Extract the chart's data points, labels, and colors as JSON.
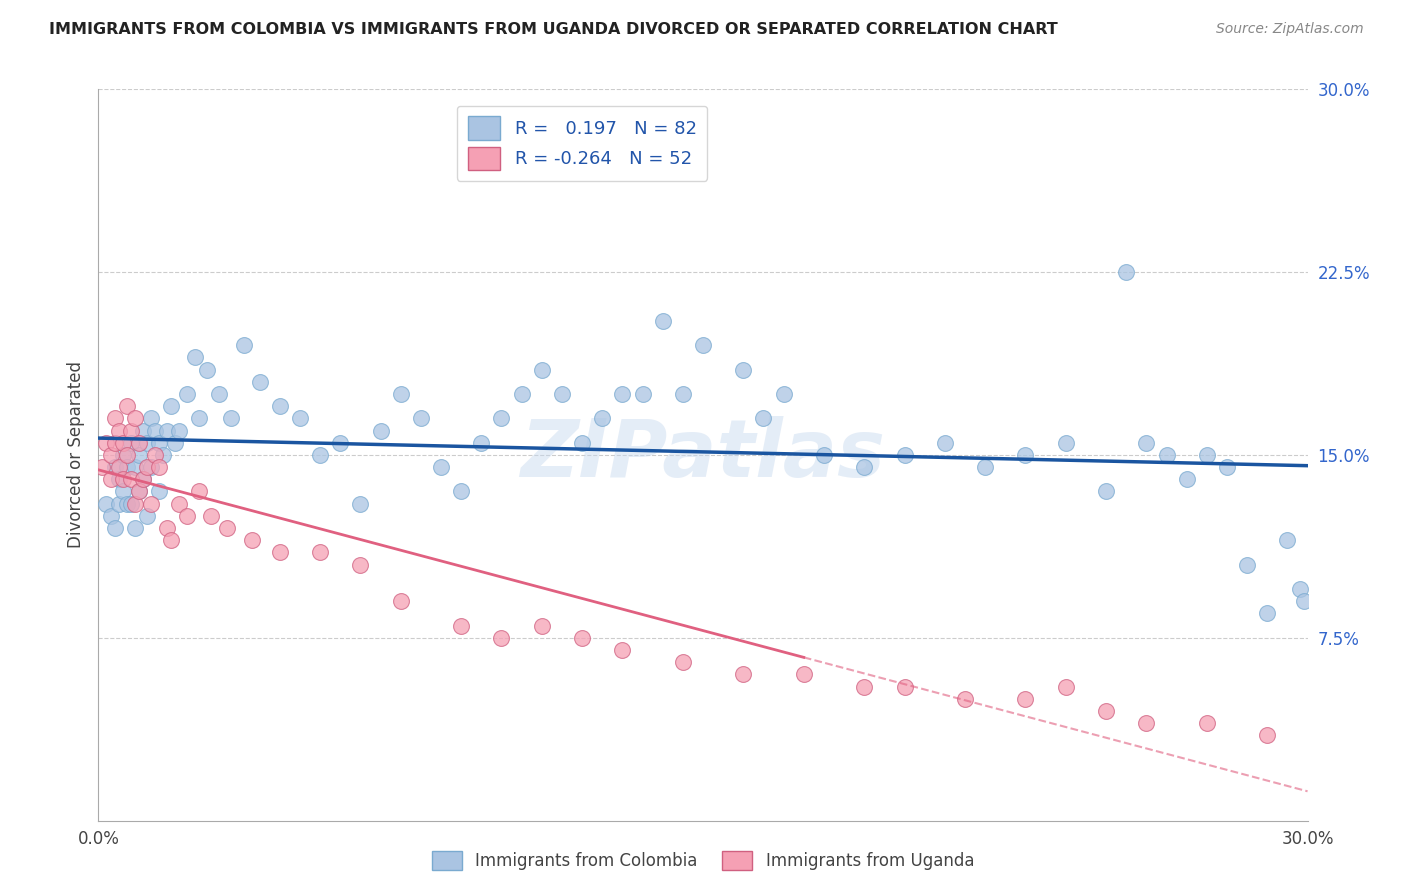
{
  "title": "IMMIGRANTS FROM COLOMBIA VS IMMIGRANTS FROM UGANDA DIVORCED OR SEPARATED CORRELATION CHART",
  "source": "Source: ZipAtlas.com",
  "ylabel": "Divorced or Separated",
  "xlim": [
    0.0,
    0.3
  ],
  "ylim": [
    0.0,
    0.3
  ],
  "colombia_R": 0.197,
  "colombia_N": 82,
  "uganda_R": -0.264,
  "uganda_N": 52,
  "colombia_color": "#aac4e2",
  "uganda_color": "#f5a0b4",
  "colombia_line_color": "#1a55a0",
  "uganda_line_color": "#e06080",
  "background_color": "#ffffff",
  "watermark": "ZIPatlas",
  "colombia_points_x": [
    0.002,
    0.003,
    0.004,
    0.004,
    0.005,
    0.005,
    0.006,
    0.006,
    0.007,
    0.007,
    0.008,
    0.008,
    0.009,
    0.009,
    0.01,
    0.01,
    0.011,
    0.011,
    0.012,
    0.012,
    0.013,
    0.013,
    0.014,
    0.015,
    0.015,
    0.016,
    0.017,
    0.018,
    0.019,
    0.02,
    0.022,
    0.024,
    0.025,
    0.027,
    0.03,
    0.033,
    0.036,
    0.04,
    0.045,
    0.05,
    0.055,
    0.06,
    0.065,
    0.07,
    0.075,
    0.08,
    0.085,
    0.09,
    0.095,
    0.1,
    0.105,
    0.11,
    0.115,
    0.12,
    0.125,
    0.13,
    0.135,
    0.14,
    0.145,
    0.15,
    0.16,
    0.165,
    0.17,
    0.18,
    0.19,
    0.2,
    0.21,
    0.22,
    0.23,
    0.24,
    0.25,
    0.255,
    0.26,
    0.265,
    0.27,
    0.275,
    0.28,
    0.285,
    0.29,
    0.295,
    0.298,
    0.299
  ],
  "colombia_points_y": [
    0.13,
    0.125,
    0.145,
    0.12,
    0.14,
    0.13,
    0.135,
    0.15,
    0.13,
    0.145,
    0.13,
    0.155,
    0.145,
    0.12,
    0.15,
    0.135,
    0.16,
    0.14,
    0.155,
    0.125,
    0.165,
    0.145,
    0.16,
    0.155,
    0.135,
    0.15,
    0.16,
    0.17,
    0.155,
    0.16,
    0.175,
    0.19,
    0.165,
    0.185,
    0.175,
    0.165,
    0.195,
    0.18,
    0.17,
    0.165,
    0.15,
    0.155,
    0.13,
    0.16,
    0.175,
    0.165,
    0.145,
    0.135,
    0.155,
    0.165,
    0.175,
    0.185,
    0.175,
    0.155,
    0.165,
    0.175,
    0.175,
    0.205,
    0.175,
    0.195,
    0.185,
    0.165,
    0.175,
    0.15,
    0.145,
    0.15,
    0.155,
    0.145,
    0.15,
    0.155,
    0.135,
    0.225,
    0.155,
    0.15,
    0.14,
    0.15,
    0.145,
    0.105,
    0.085,
    0.115,
    0.095,
    0.09
  ],
  "uganda_points_x": [
    0.001,
    0.002,
    0.003,
    0.003,
    0.004,
    0.004,
    0.005,
    0.005,
    0.006,
    0.006,
    0.007,
    0.007,
    0.008,
    0.008,
    0.009,
    0.009,
    0.01,
    0.01,
    0.011,
    0.012,
    0.013,
    0.014,
    0.015,
    0.017,
    0.018,
    0.02,
    0.022,
    0.025,
    0.028,
    0.032,
    0.038,
    0.045,
    0.055,
    0.065,
    0.075,
    0.09,
    0.1,
    0.11,
    0.12,
    0.13,
    0.145,
    0.16,
    0.175,
    0.19,
    0.2,
    0.215,
    0.23,
    0.24,
    0.25,
    0.26,
    0.275,
    0.29
  ],
  "uganda_points_y": [
    0.145,
    0.155,
    0.15,
    0.14,
    0.165,
    0.155,
    0.16,
    0.145,
    0.155,
    0.14,
    0.17,
    0.15,
    0.16,
    0.14,
    0.13,
    0.165,
    0.155,
    0.135,
    0.14,
    0.145,
    0.13,
    0.15,
    0.145,
    0.12,
    0.115,
    0.13,
    0.125,
    0.135,
    0.125,
    0.12,
    0.115,
    0.11,
    0.11,
    0.105,
    0.09,
    0.08,
    0.075,
    0.08,
    0.075,
    0.07,
    0.065,
    0.06,
    0.06,
    0.055,
    0.055,
    0.05,
    0.05,
    0.055,
    0.045,
    0.04,
    0.04,
    0.035
  ],
  "y_ticks": [
    0.0,
    0.075,
    0.15,
    0.225,
    0.3
  ],
  "y_tick_labels": [
    "",
    "7.5%",
    "15.0%",
    "22.5%",
    "30.0%"
  ],
  "x_ticks": [
    0.0,
    0.05,
    0.1,
    0.15,
    0.2,
    0.25,
    0.3
  ],
  "x_tick_labels": [
    "0.0%",
    "",
    "",
    "",
    "",
    "",
    "30.0%"
  ]
}
